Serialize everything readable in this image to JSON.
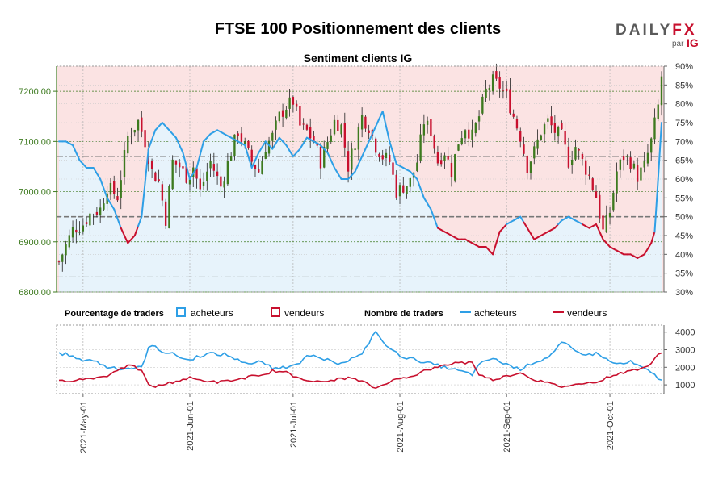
{
  "header": {
    "title": "FTSE 100 Positionnement des clients",
    "logo_left": "DAILY",
    "logo_right": "FX",
    "logo_sub": "par",
    "logo_ig": "IG"
  },
  "colors": {
    "buyers": "#2e9fe6",
    "sellers": "#c8102e",
    "bull": "#3d7a1f",
    "bear": "#c8102e",
    "bg_top": "#fbe3e3",
    "bg_bottom": "#e7f3fb",
    "grid": "#b0b0b0"
  },
  "chart_data": {
    "type": "candlestick-with-sentiment",
    "title": "Sentiment clients IG",
    "price_axis": {
      "side": "left",
      "ylim": [
        6800,
        7250
      ],
      "ticks": [
        "6800.00",
        "6900.00",
        "7000.00",
        "7100.00",
        "7200.00"
      ]
    },
    "pct_axis": {
      "side": "right",
      "ylim": [
        30,
        90
      ],
      "ticks": [
        "30%",
        "35%",
        "40%",
        "45%",
        "50%",
        "55%",
        "60%",
        "65%",
        "70%",
        "75%",
        "80%",
        "85%",
        "90%"
      ]
    },
    "reference_lines_pct": [
      34,
      50,
      66
    ],
    "x_labels": [
      "2021-May-01",
      "2021-Jun-01",
      "2021-Jul-01",
      "2021-Aug-01",
      "2021-Sep-01",
      "2021-Oct-01"
    ],
    "x_label_index": [
      7,
      38,
      68,
      99,
      130,
      160
    ],
    "n_days": 176,
    "price_keypoints": [
      [
        0,
        6860
      ],
      [
        4,
        6925
      ],
      [
        7,
        6935
      ],
      [
        9,
        6955
      ],
      [
        12,
        6965
      ],
      [
        14,
        7010
      ],
      [
        17,
        6990
      ],
      [
        20,
        7110
      ],
      [
        23,
        7140
      ],
      [
        25,
        7100
      ],
      [
        27,
        7040
      ],
      [
        29,
        7020
      ],
      [
        31,
        6945
      ],
      [
        33,
        7060
      ],
      [
        35,
        7050
      ],
      [
        37,
        7030
      ],
      [
        39,
        7050
      ],
      [
        41,
        7000
      ],
      [
        44,
        7060
      ],
      [
        47,
        7010
      ],
      [
        50,
        7080
      ],
      [
        52,
        7120
      ],
      [
        54,
        7090
      ],
      [
        56,
        7060
      ],
      [
        58,
        7040
      ],
      [
        60,
        7090
      ],
      [
        62,
        7110
      ],
      [
        64,
        7150
      ],
      [
        66,
        7170
      ],
      [
        68,
        7180
      ],
      [
        70,
        7130
      ],
      [
        72,
        7120
      ],
      [
        74,
        7100
      ],
      [
        76,
        7060
      ],
      [
        78,
        7100
      ],
      [
        80,
        7140
      ],
      [
        82,
        7130
      ],
      [
        84,
        7050
      ],
      [
        86,
        7100
      ],
      [
        88,
        7150
      ],
      [
        90,
        7130
      ],
      [
        92,
        7090
      ],
      [
        94,
        7070
      ],
      [
        96,
        7060
      ],
      [
        98,
        7000
      ],
      [
        100,
        7010
      ],
      [
        102,
        7020
      ],
      [
        104,
        7060
      ],
      [
        106,
        7140
      ],
      [
        108,
        7120
      ],
      [
        110,
        7060
      ],
      [
        112,
        7080
      ],
      [
        114,
        7040
      ],
      [
        116,
        7100
      ],
      [
        118,
        7130
      ],
      [
        120,
        7110
      ],
      [
        122,
        7150
      ],
      [
        124,
        7200
      ],
      [
        126,
        7220
      ],
      [
        128,
        7210
      ],
      [
        130,
        7190
      ],
      [
        132,
        7150
      ],
      [
        134,
        7110
      ],
      [
        136,
        7050
      ],
      [
        138,
        7080
      ],
      [
        140,
        7120
      ],
      [
        142,
        7140
      ],
      [
        144,
        7120
      ],
      [
        146,
        7110
      ],
      [
        148,
        7060
      ],
      [
        150,
        7090
      ],
      [
        152,
        7060
      ],
      [
        154,
        7030
      ],
      [
        156,
        6990
      ],
      [
        158,
        6920
      ],
      [
        160,
        6960
      ],
      [
        162,
        7040
      ],
      [
        164,
        7070
      ],
      [
        166,
        7060
      ],
      [
        168,
        7030
      ],
      [
        170,
        7050
      ],
      [
        172,
        7100
      ],
      [
        174,
        7170
      ],
      [
        175,
        7230
      ]
    ],
    "long_pct_keypoints": [
      [
        0,
        70
      ],
      [
        2,
        70
      ],
      [
        4,
        69
      ],
      [
        6,
        65
      ],
      [
        8,
        63
      ],
      [
        10,
        63
      ],
      [
        12,
        60
      ],
      [
        14,
        55
      ],
      [
        16,
        52
      ],
      [
        18,
        47
      ],
      [
        20,
        43
      ],
      [
        22,
        45
      ],
      [
        24,
        50
      ],
      [
        26,
        68
      ],
      [
        28,
        73
      ],
      [
        30,
        75
      ],
      [
        32,
        73
      ],
      [
        34,
        71
      ],
      [
        36,
        67
      ],
      [
        38,
        60
      ],
      [
        40,
        63
      ],
      [
        42,
        70
      ],
      [
        44,
        72
      ],
      [
        46,
        73
      ],
      [
        48,
        72
      ],
      [
        50,
        71
      ],
      [
        52,
        70
      ],
      [
        54,
        69
      ],
      [
        56,
        63
      ],
      [
        58,
        67
      ],
      [
        60,
        70
      ],
      [
        62,
        68
      ],
      [
        64,
        71
      ],
      [
        66,
        69
      ],
      [
        68,
        66
      ],
      [
        70,
        68
      ],
      [
        72,
        71
      ],
      [
        74,
        70
      ],
      [
        76,
        69
      ],
      [
        78,
        67
      ],
      [
        80,
        63
      ],
      [
        82,
        60
      ],
      [
        84,
        60
      ],
      [
        86,
        62
      ],
      [
        88,
        66
      ],
      [
        90,
        70
      ],
      [
        92,
        74
      ],
      [
        94,
        78
      ],
      [
        96,
        70
      ],
      [
        98,
        64
      ],
      [
        100,
        63
      ],
      [
        102,
        62
      ],
      [
        104,
        60
      ],
      [
        106,
        55
      ],
      [
        108,
        52
      ],
      [
        110,
        47
      ],
      [
        112,
        46
      ],
      [
        114,
        45
      ],
      [
        116,
        44
      ],
      [
        118,
        44
      ],
      [
        120,
        43
      ],
      [
        122,
        42
      ],
      [
        124,
        42
      ],
      [
        126,
        40
      ],
      [
        128,
        46
      ],
      [
        130,
        48
      ],
      [
        132,
        49
      ],
      [
        134,
        50
      ],
      [
        136,
        47
      ],
      [
        138,
        44
      ],
      [
        140,
        45
      ],
      [
        142,
        46
      ],
      [
        144,
        47
      ],
      [
        146,
        49
      ],
      [
        148,
        50
      ],
      [
        150,
        49
      ],
      [
        152,
        48
      ],
      [
        154,
        47
      ],
      [
        156,
        48
      ],
      [
        158,
        44
      ],
      [
        160,
        42
      ],
      [
        162,
        41
      ],
      [
        164,
        40
      ],
      [
        166,
        40
      ],
      [
        168,
        39
      ],
      [
        170,
        40
      ],
      [
        172,
        43
      ],
      [
        173,
        46
      ],
      [
        174,
        60
      ],
      [
        175,
        75
      ]
    ],
    "bars_legend": {
      "title": "Pourcentage de traders",
      "buyers": "acheteurs",
      "sellers": "vendeurs"
    },
    "lines_legend": {
      "title": "Nombre de traders",
      "buyers": "acheteurs",
      "sellers": "vendeurs"
    },
    "count_axis": {
      "side": "right",
      "ylim": [
        500,
        4400
      ],
      "ticks": [
        "1000",
        "2000",
        "3000",
        "4000"
      ]
    },
    "buyer_count_keypoints": [
      [
        0,
        2800
      ],
      [
        3,
        2700
      ],
      [
        6,
        2400
      ],
      [
        8,
        2450
      ],
      [
        10,
        2400
      ],
      [
        12,
        2200
      ],
      [
        14,
        2000
      ],
      [
        16,
        2000
      ],
      [
        18,
        1900
      ],
      [
        20,
        1950
      ],
      [
        22,
        1950
      ],
      [
        24,
        2000
      ],
      [
        26,
        3100
      ],
      [
        28,
        3200
      ],
      [
        30,
        2900
      ],
      [
        32,
        2800
      ],
      [
        34,
        2700
      ],
      [
        36,
        2500
      ],
      [
        38,
        2400
      ],
      [
        40,
        2600
      ],
      [
        42,
        2700
      ],
      [
        44,
        2800
      ],
      [
        46,
        2700
      ],
      [
        48,
        2750
      ],
      [
        50,
        2600
      ],
      [
        52,
        2400
      ],
      [
        54,
        2300
      ],
      [
        56,
        2200
      ],
      [
        58,
        2300
      ],
      [
        60,
        2200
      ],
      [
        62,
        1900
      ],
      [
        64,
        2000
      ],
      [
        66,
        2000
      ],
      [
        68,
        2200
      ],
      [
        70,
        2300
      ],
      [
        72,
        2600
      ],
      [
        74,
        2600
      ],
      [
        76,
        2500
      ],
      [
        78,
        2400
      ],
      [
        80,
        2200
      ],
      [
        82,
        2300
      ],
      [
        84,
        2400
      ],
      [
        86,
        2600
      ],
      [
        88,
        2700
      ],
      [
        90,
        3400
      ],
      [
        92,
        4100
      ],
      [
        94,
        3400
      ],
      [
        96,
        3100
      ],
      [
        98,
        2800
      ],
      [
        100,
        2600
      ],
      [
        102,
        2500
      ],
      [
        104,
        2400
      ],
      [
        106,
        2300
      ],
      [
        108,
        2200
      ],
      [
        110,
        2100
      ],
      [
        112,
        2000
      ],
      [
        114,
        1900
      ],
      [
        116,
        1800
      ],
      [
        118,
        1700
      ],
      [
        120,
        1600
      ],
      [
        122,
        2100
      ],
      [
        124,
        2400
      ],
      [
        126,
        2500
      ],
      [
        128,
        2300
      ],
      [
        130,
        2200
      ],
      [
        132,
        2000
      ],
      [
        134,
        1900
      ],
      [
        136,
        2100
      ],
      [
        138,
        2300
      ],
      [
        140,
        2400
      ],
      [
        142,
        2600
      ],
      [
        144,
        2900
      ],
      [
        146,
        3400
      ],
      [
        148,
        3200
      ],
      [
        150,
        2900
      ],
      [
        152,
        2800
      ],
      [
        154,
        2700
      ],
      [
        156,
        2800
      ],
      [
        158,
        2600
      ],
      [
        160,
        2300
      ],
      [
        162,
        2200
      ],
      [
        164,
        2200
      ],
      [
        166,
        2300
      ],
      [
        168,
        2100
      ],
      [
        170,
        1900
      ],
      [
        172,
        1700
      ],
      [
        174,
        1400
      ],
      [
        175,
        1300
      ]
    ],
    "seller_count_keypoints": [
      [
        0,
        1200
      ],
      [
        3,
        1250
      ],
      [
        6,
        1300
      ],
      [
        8,
        1350
      ],
      [
        10,
        1400
      ],
      [
        12,
        1450
      ],
      [
        14,
        1500
      ],
      [
        16,
        1800
      ],
      [
        18,
        1900
      ],
      [
        20,
        2100
      ],
      [
        22,
        2000
      ],
      [
        24,
        1800
      ],
      [
        26,
        1000
      ],
      [
        28,
        900
      ],
      [
        30,
        1000
      ],
      [
        32,
        1100
      ],
      [
        34,
        1200
      ],
      [
        36,
        1300
      ],
      [
        38,
        1400
      ],
      [
        40,
        1300
      ],
      [
        42,
        1250
      ],
      [
        44,
        1200
      ],
      [
        46,
        1150
      ],
      [
        48,
        1200
      ],
      [
        50,
        1250
      ],
      [
        52,
        1300
      ],
      [
        54,
        1400
      ],
      [
        56,
        1500
      ],
      [
        58,
        1450
      ],
      [
        60,
        1600
      ],
      [
        62,
        1800
      ],
      [
        64,
        1750
      ],
      [
        66,
        1700
      ],
      [
        68,
        1500
      ],
      [
        70,
        1400
      ],
      [
        72,
        1300
      ],
      [
        74,
        1200
      ],
      [
        76,
        1150
      ],
      [
        78,
        1200
      ],
      [
        80,
        1300
      ],
      [
        82,
        1350
      ],
      [
        84,
        1400
      ],
      [
        86,
        1300
      ],
      [
        88,
        1200
      ],
      [
        90,
        1000
      ],
      [
        92,
        800
      ],
      [
        94,
        1000
      ],
      [
        96,
        1200
      ],
      [
        98,
        1300
      ],
      [
        100,
        1400
      ],
      [
        102,
        1500
      ],
      [
        104,
        1600
      ],
      [
        106,
        1800
      ],
      [
        108,
        1900
      ],
      [
        110,
        2000
      ],
      [
        112,
        2100
      ],
      [
        114,
        2200
      ],
      [
        116,
        2300
      ],
      [
        118,
        2250
      ],
      [
        120,
        2300
      ],
      [
        122,
        1600
      ],
      [
        124,
        1400
      ],
      [
        126,
        1300
      ],
      [
        128,
        1400
      ],
      [
        130,
        1500
      ],
      [
        132,
        1600
      ],
      [
        134,
        1700
      ],
      [
        136,
        1500
      ],
      [
        138,
        1300
      ],
      [
        140,
        1200
      ],
      [
        142,
        1100
      ],
      [
        144,
        1000
      ],
      [
        146,
        900
      ],
      [
        148,
        950
      ],
      [
        150,
        1000
      ],
      [
        152,
        1100
      ],
      [
        154,
        1200
      ],
      [
        156,
        1100
      ],
      [
        158,
        1300
      ],
      [
        160,
        1500
      ],
      [
        162,
        1600
      ],
      [
        164,
        1700
      ],
      [
        166,
        1800
      ],
      [
        168,
        1900
      ],
      [
        170,
        2000
      ],
      [
        172,
        2200
      ],
      [
        174,
        2700
      ],
      [
        175,
        2800
      ]
    ]
  }
}
